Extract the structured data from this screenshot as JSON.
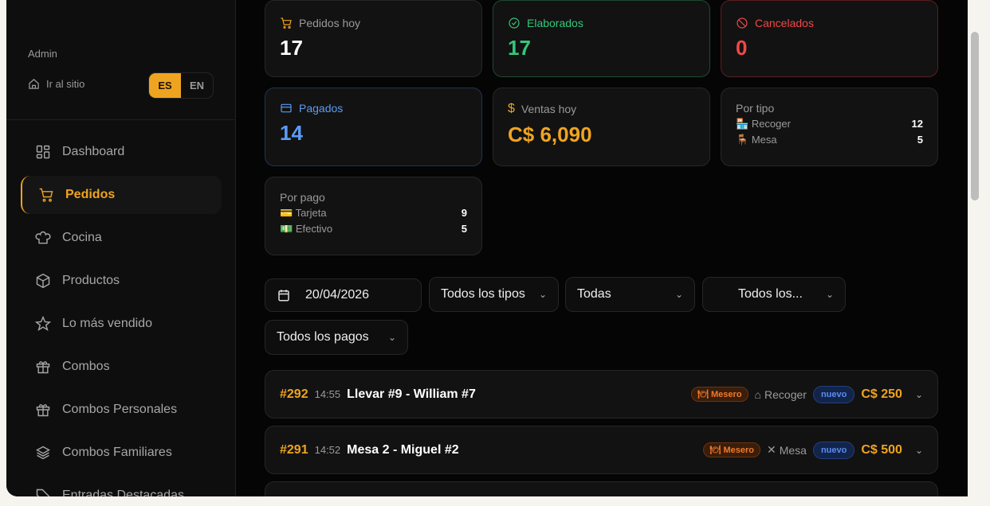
{
  "sidebar": {
    "role": "Admin",
    "go_site": "Ir al sitio",
    "lang": [
      "ES",
      "EN"
    ],
    "items": [
      {
        "label": "Dashboard",
        "icon": "grid-icon"
      },
      {
        "label": "Pedidos",
        "icon": "cart-icon",
        "active": true
      },
      {
        "label": "Cocina",
        "icon": "chef-hat-icon"
      },
      {
        "label": "Productos",
        "icon": "box-icon"
      },
      {
        "label": "Lo más vendido",
        "icon": "star-icon"
      },
      {
        "label": "Combos",
        "icon": "gift-icon"
      },
      {
        "label": "Combos Personales",
        "icon": "gift-icon"
      },
      {
        "label": "Combos Familiares",
        "icon": "layers-icon"
      },
      {
        "label": "Entradas Destacadas",
        "icon": "tag-icon"
      }
    ]
  },
  "stats": {
    "pedidos_hoy": {
      "label": "Pedidos hoy",
      "value": "17"
    },
    "elaborados": {
      "label": "Elaborados",
      "value": "17",
      "color": "#34c77b"
    },
    "cancelados": {
      "label": "Cancelados",
      "value": "0",
      "color": "#f04848"
    },
    "pagados": {
      "label": "Pagados",
      "value": "14",
      "color": "#5a9cf5"
    },
    "ventas": {
      "label": "Ventas hoy",
      "value": "C$ 6,090",
      "color": "#efa420"
    },
    "por_tipo": {
      "label": "Por tipo",
      "rows": [
        {
          "name": "Recoger",
          "count": "12"
        },
        {
          "name": "Mesa",
          "count": "5"
        }
      ]
    },
    "por_pago": {
      "label": "Por pago",
      "rows": [
        {
          "name": "Tarjeta",
          "count": "9"
        },
        {
          "name": "Efectivo",
          "count": "5"
        }
      ]
    }
  },
  "filters": {
    "date": "20/04/2026",
    "type": "Todos los tipos",
    "status": "Todas",
    "third": "Todos los...",
    "payment": "Todos los pagos"
  },
  "orders": [
    {
      "id": "#292",
      "time": "14:55",
      "name": "Llevar #9 - William #7",
      "source": "Mesero",
      "type": "Recoger",
      "status": "nuevo",
      "total": "C$ 250"
    },
    {
      "id": "#291",
      "time": "14:52",
      "name": "Mesa 2 - Miguel #2",
      "source": "Mesero",
      "type": "Mesa",
      "status": "nuevo",
      "total": "C$ 500"
    }
  ]
}
